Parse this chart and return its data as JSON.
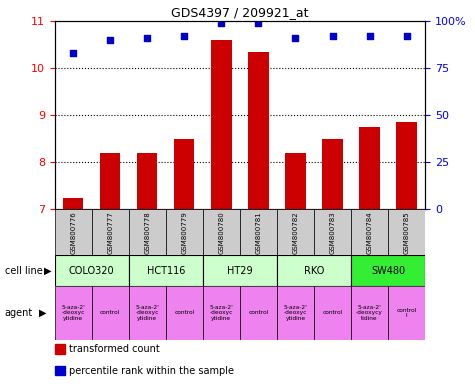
{
  "title": "GDS4397 / 209921_at",
  "samples": [
    "GSM800776",
    "GSM800777",
    "GSM800778",
    "GSM800779",
    "GSM800780",
    "GSM800781",
    "GSM800782",
    "GSM800783",
    "GSM800784",
    "GSM800785"
  ],
  "bar_values": [
    7.25,
    8.2,
    8.2,
    8.5,
    10.6,
    10.35,
    8.2,
    8.5,
    8.75,
    8.85
  ],
  "dot_values": [
    83,
    90,
    91,
    92,
    99,
    99,
    91,
    92,
    92,
    92
  ],
  "ylim_left": [
    7,
    11
  ],
  "ylim_right": [
    0,
    100
  ],
  "yticks_left": [
    7,
    8,
    9,
    10,
    11
  ],
  "yticks_right": [
    0,
    25,
    50,
    75,
    100
  ],
  "ytick_right_labels": [
    "0",
    "25",
    "50",
    "75",
    "100%"
  ],
  "cell_lines": [
    {
      "name": "COLO320",
      "span": [
        0,
        2
      ],
      "color": "#ccffcc"
    },
    {
      "name": "HCT116",
      "span": [
        2,
        4
      ],
      "color": "#ccffcc"
    },
    {
      "name": "HT29",
      "span": [
        4,
        6
      ],
      "color": "#ccffcc"
    },
    {
      "name": "RKO",
      "span": [
        6,
        8
      ],
      "color": "#ccffcc"
    },
    {
      "name": "SW480",
      "span": [
        8,
        10
      ],
      "color": "#33ee33"
    }
  ],
  "agents": [
    {
      "name": "5-aza-2'\n-deoxyc\nytidine",
      "span": [
        0,
        1
      ],
      "color": "#ee82ee"
    },
    {
      "name": "control",
      "span": [
        1,
        2
      ],
      "color": "#ee82ee"
    },
    {
      "name": "5-aza-2'\n-deoxyc\nytidine",
      "span": [
        2,
        3
      ],
      "color": "#ee82ee"
    },
    {
      "name": "control",
      "span": [
        3,
        4
      ],
      "color": "#ee82ee"
    },
    {
      "name": "5-aza-2'\n-deoxyc\nytidine",
      "span": [
        4,
        5
      ],
      "color": "#ee82ee"
    },
    {
      "name": "control",
      "span": [
        5,
        6
      ],
      "color": "#ee82ee"
    },
    {
      "name": "5-aza-2'\n-deoxyc\nytidine",
      "span": [
        6,
        7
      ],
      "color": "#ee82ee"
    },
    {
      "name": "control",
      "span": [
        7,
        8
      ],
      "color": "#ee82ee"
    },
    {
      "name": "5-aza-2'\n-deoxycy\ntidine",
      "span": [
        8,
        9
      ],
      "color": "#ee82ee"
    },
    {
      "name": "control\nl",
      "span": [
        9,
        10
      ],
      "color": "#ee82ee"
    }
  ],
  "bar_color": "#cc0000",
  "dot_color": "#0000cc",
  "sample_bg_color": "#cccccc",
  "legend_items": [
    {
      "label": "transformed count",
      "color": "#cc0000"
    },
    {
      "label": "percentile rank within the sample",
      "color": "#0000cc"
    }
  ],
  "cell_line_label": "cell line",
  "agent_label": "agent"
}
